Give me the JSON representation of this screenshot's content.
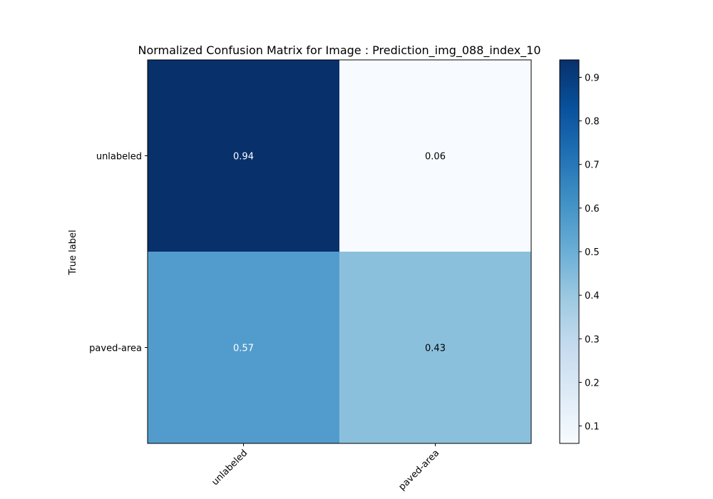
{
  "chart_data": {
    "type": "heatmap",
    "title": "Normalized Confusion Matrix for Image : Prediction_img_088_index_10",
    "ylabel": "True label",
    "xlabel": "",
    "x_categories": [
      "unlabeled",
      "paved-area"
    ],
    "y_categories": [
      "unlabeled",
      "paved-area"
    ],
    "values": [
      [
        0.94,
        0.06
      ],
      [
        0.57,
        0.43
      ]
    ],
    "value_labels": [
      [
        "0.94",
        "0.06"
      ],
      [
        "0.57",
        "0.43"
      ]
    ],
    "colormap": "Blues",
    "color_range": [
      0.06,
      0.94
    ],
    "colorbar_ticks": [
      0.1,
      0.2,
      0.3,
      0.4,
      0.5,
      0.6,
      0.7,
      0.8,
      0.9
    ],
    "colorbar_tick_labels": [
      "0.1",
      "0.2",
      "0.3",
      "0.4",
      "0.5",
      "0.6",
      "0.7",
      "0.8",
      "0.9"
    ],
    "cell_text_colors": {
      "light": "#ffffff",
      "dark": "#000000"
    },
    "grid": false
  }
}
